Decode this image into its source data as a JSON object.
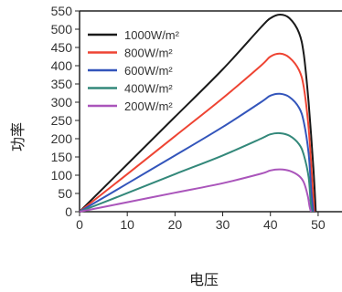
{
  "chart_data": {
    "type": "line",
    "xlabel": "电压",
    "ylabel": "功率",
    "xlim": [
      0,
      55
    ],
    "ylim": [
      0,
      550
    ],
    "xticks": [
      0,
      10,
      20,
      30,
      40,
      50
    ],
    "yticks": [
      0,
      50,
      100,
      150,
      200,
      250,
      300,
      350,
      400,
      450,
      500,
      550
    ],
    "grid": false,
    "legend_position": "top-left",
    "series": [
      {
        "name": "1000W/m²",
        "color": "#1a1a1a",
        "x": [
          0,
          10,
          20,
          30,
          38,
          40,
          42,
          44,
          46,
          47,
          48,
          49,
          49.5
        ],
        "y": [
          0,
          130,
          260,
          390,
          505,
          530,
          540,
          530,
          490,
          430,
          300,
          120,
          0
        ]
      },
      {
        "name": "800W/m²",
        "color": "#ee4433",
        "x": [
          0,
          10,
          20,
          30,
          38,
          40,
          42,
          44,
          46,
          47,
          48,
          48.8,
          49.2
        ],
        "y": [
          0,
          103,
          207,
          311,
          400,
          425,
          433,
          422,
          388,
          340,
          230,
          80,
          0
        ]
      },
      {
        "name": "600W/m²",
        "color": "#3355bb",
        "x": [
          0,
          10,
          20,
          30,
          38,
          40,
          42,
          44,
          46,
          47,
          48,
          48.6,
          49.0
        ],
        "y": [
          0,
          77,
          154,
          232,
          300,
          318,
          323,
          314,
          285,
          245,
          160,
          50,
          0
        ]
      },
      {
        "name": "400W/m²",
        "color": "#33887a",
        "x": [
          0,
          10,
          20,
          30,
          38,
          40,
          42,
          44,
          46,
          47,
          48,
          48.4,
          48.7
        ],
        "y": [
          0,
          51,
          103,
          154,
          200,
          212,
          215,
          208,
          185,
          155,
          95,
          30,
          0
        ]
      },
      {
        "name": "200W/m²",
        "color": "#aa55bb",
        "x": [
          0,
          10,
          20,
          30,
          38,
          40,
          42,
          44,
          46,
          47,
          47.8,
          48.2,
          48.5
        ],
        "y": [
          0,
          26,
          52,
          78,
          104,
          113,
          116,
          112,
          98,
          80,
          45,
          15,
          0
        ]
      }
    ]
  }
}
